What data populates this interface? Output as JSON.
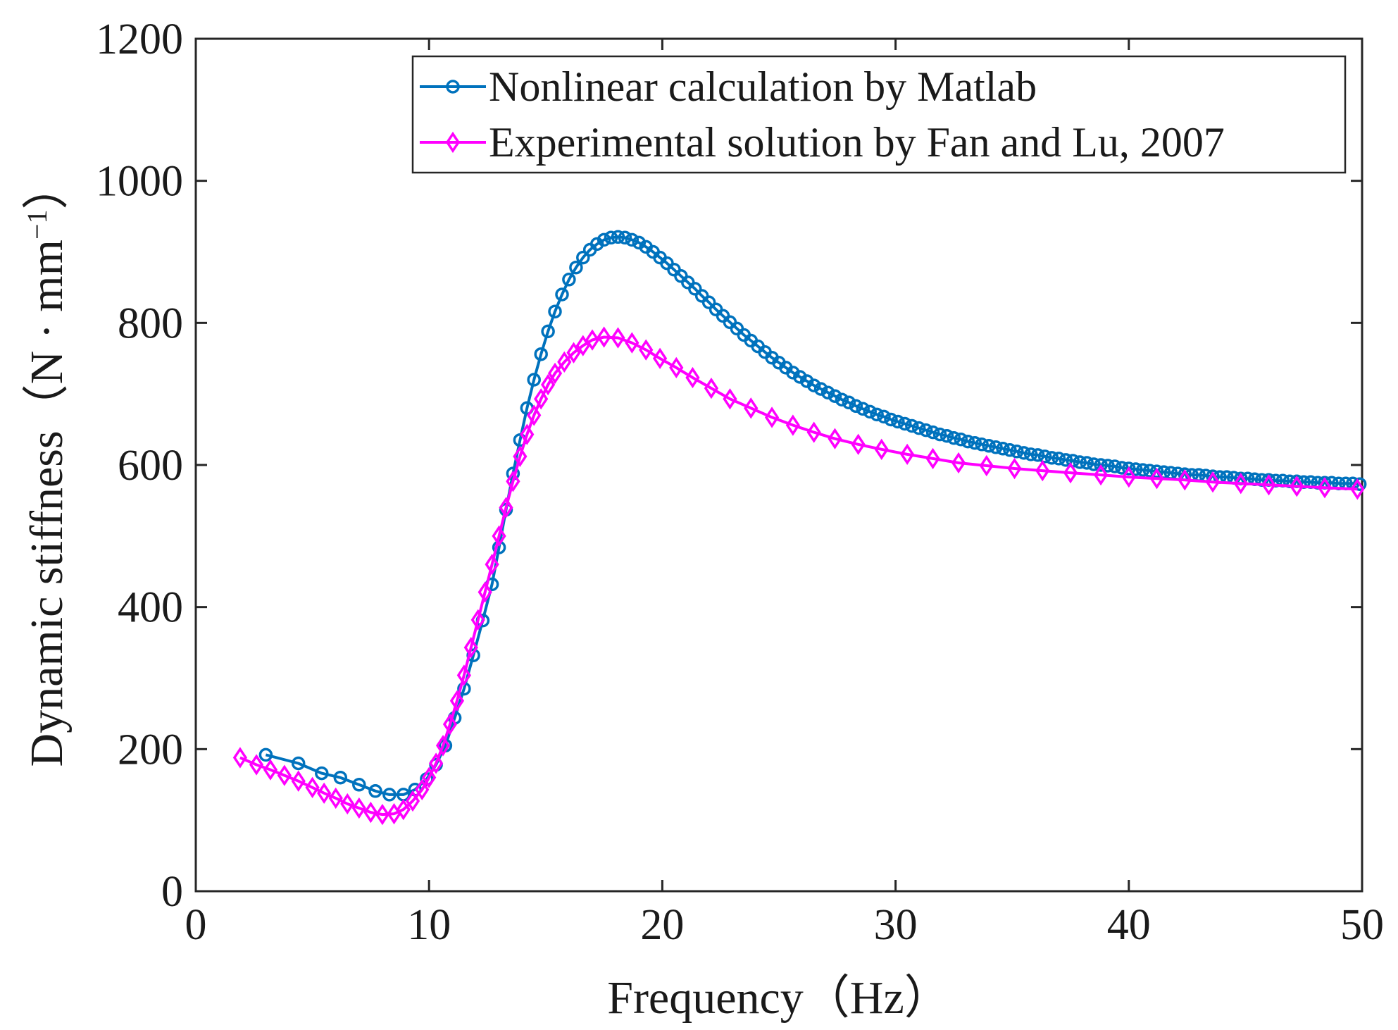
{
  "chart_data": {
    "type": "line",
    "xlabel": "Frequency（Hz）",
    "ylabel": "Dynamic stiffness（N · mm",
    "ylabel_superscript": "−1",
    "ylabel_close": "）",
    "xlim": [
      0,
      50
    ],
    "ylim": [
      0,
      1200
    ],
    "xticks": [
      "0",
      "10",
      "20",
      "30",
      "40",
      "50"
    ],
    "yticks": [
      "0",
      "200",
      "400",
      "600",
      "800",
      "1000",
      "1200"
    ],
    "legend_position": "top-right",
    "grid": false,
    "series": [
      {
        "name": "Nonlinear calculation by Matlab",
        "color": "#0072bd",
        "marker": "circle",
        "x": [
          3,
          4.4,
          5.4,
          6.2,
          7,
          7.7,
          8.3,
          8.9,
          9.4,
          9.9,
          10.3,
          10.7,
          11.1,
          11.5,
          11.9,
          12.3,
          12.7,
          13.0,
          13.3,
          13.6,
          13.9,
          14.2,
          14.5,
          14.8,
          15.1,
          15.4,
          15.7,
          16.0,
          16.3,
          16.6,
          16.9,
          17.2,
          17.5,
          17.8,
          18.1,
          18.4,
          18.7,
          19.0,
          19.3,
          19.6,
          19.9,
          20.2,
          20.5,
          20.8,
          21.1,
          21.4,
          21.7,
          22.0,
          22.3,
          22.6,
          22.9,
          23.2,
          23.5,
          23.8,
          24.1,
          24.4,
          24.7,
          25.0,
          25.3,
          25.6,
          25.9,
          26.2,
          26.5,
          26.8,
          27.1,
          27.4,
          27.7,
          28.0,
          28.3,
          28.6,
          28.9,
          29.2,
          29.5,
          29.8,
          30.1,
          30.4,
          30.7,
          31.0,
          31.3,
          31.6,
          31.9,
          32.2,
          32.5,
          32.8,
          33.1,
          33.4,
          33.7,
          34.0,
          34.3,
          34.6,
          34.9,
          35.2,
          35.5,
          35.8,
          36.1,
          36.4,
          36.7,
          37.0,
          37.3,
          37.6,
          37.9,
          38.2,
          38.5,
          38.8,
          39.1,
          39.4,
          39.7,
          40.0,
          40.3,
          40.6,
          40.9,
          41.2,
          41.5,
          41.8,
          42.1,
          42.4,
          42.7,
          43.0,
          43.3,
          43.6,
          43.9,
          44.2,
          44.5,
          44.8,
          45.1,
          45.4,
          45.7,
          46.0,
          46.3,
          46.6,
          46.9,
          47.2,
          47.5,
          47.8,
          48.1,
          48.4,
          48.7,
          49.0,
          49.3,
          49.6,
          49.9
        ],
        "y": [
          192,
          180,
          166,
          160,
          150,
          141,
          136,
          136,
          143,
          158,
          178,
          205,
          244,
          285,
          332,
          381,
          432,
          484,
          537,
          588,
          635,
          680,
          720,
          756,
          788,
          816,
          840,
          861,
          878,
          892,
          903,
          911,
          917,
          920,
          921,
          920,
          917,
          913,
          907,
          900,
          892,
          884,
          875,
          866,
          857,
          848,
          838,
          829,
          819,
          810,
          801,
          792,
          783,
          775,
          767,
          759,
          751,
          744,
          737,
          730,
          724,
          718,
          712,
          707,
          702,
          697,
          692,
          688,
          683,
          679,
          675,
          671,
          668,
          664,
          661,
          658,
          655,
          652,
          649,
          646,
          643,
          641,
          638,
          636,
          633,
          631,
          629,
          627,
          625,
          623,
          621,
          619,
          617,
          615,
          614,
          612,
          610,
          609,
          607,
          606,
          604,
          603,
          601,
          600,
          599,
          598,
          596,
          595,
          594,
          593,
          592,
          591,
          590,
          589,
          588,
          587,
          586,
          586,
          585,
          584,
          583,
          583,
          582,
          581,
          581,
          580,
          579,
          579,
          578,
          578,
          577,
          577,
          576,
          576,
          575,
          575,
          575,
          574,
          574,
          574,
          573
        ]
      },
      {
        "name": "Experimental solution by Fan and Lu, 2007",
        "color": "#ff00ff",
        "marker": "diamond",
        "x": [
          1.9,
          2.6,
          3.2,
          3.8,
          4.4,
          5.0,
          5.5,
          6.0,
          6.5,
          7.0,
          7.5,
          8.0,
          8.5,
          8.9,
          9.3,
          9.7,
          10.0,
          10.3,
          10.6,
          10.9,
          11.2,
          11.5,
          11.8,
          12.1,
          12.4,
          12.7,
          13.0,
          13.3,
          13.6,
          13.9,
          14.2,
          14.5,
          14.8,
          15.1,
          15.4,
          15.8,
          16.2,
          16.6,
          17.0,
          17.5,
          18.1,
          18.7,
          19.3,
          19.9,
          20.6,
          21.3,
          22.1,
          22.9,
          23.8,
          24.7,
          25.6,
          26.5,
          27.4,
          28.4,
          29.4,
          30.5,
          31.6,
          32.7,
          33.9,
          35.1,
          36.3,
          37.5,
          38.8,
          40.0,
          41.2,
          42.4,
          43.6,
          44.8,
          46.0,
          47.2,
          48.4,
          49.8
        ],
        "y": [
          188,
          178,
          171,
          163,
          155,
          146,
          138,
          131,
          123,
          117,
          111,
          108,
          109,
          115,
          127,
          143,
          160,
          180,
          205,
          235,
          268,
          304,
          343,
          382,
          421,
          460,
          500,
          540,
          577,
          612,
          643,
          670,
          693,
          713,
          729,
          745,
          758,
          768,
          776,
          780,
          779,
          772,
          762,
          750,
          737,
          723,
          708,
          693,
          680,
          667,
          656,
          646,
          637,
          629,
          622,
          615,
          609,
          603,
          599,
          595,
          592,
          589,
          586,
          583,
          581,
          579,
          576,
          574,
          572,
          570,
          568,
          566
        ]
      }
    ]
  }
}
